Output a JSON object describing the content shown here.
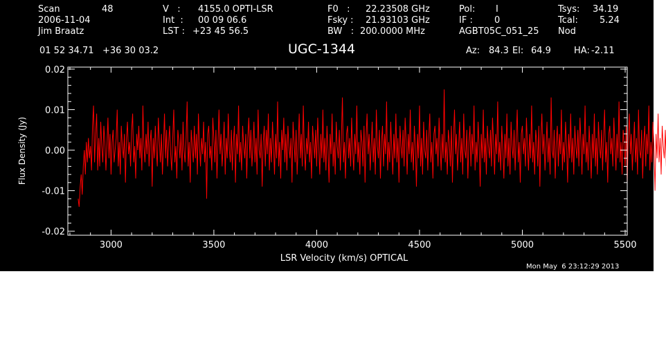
{
  "header": {
    "scan_label": "Scan",
    "scan_value": "48",
    "date": "2006-11-04",
    "observer": "Jim Braatz",
    "v_label": "V   :",
    "v_value": "4155.0 OPTI-LSR",
    "int_label": "Int  :",
    "int_value": "00 09 06.6",
    "lst_label": "LST :",
    "lst_value": "+23 45 56.5",
    "f0_label": "F0   :",
    "f0_value": "22.23508 GHz",
    "fsky_label": "Fsky :",
    "fsky_value": "21.93103 GHz",
    "bw_label": "BW   :",
    "bw_value": "200.0000 MHz",
    "pol_label": "Pol:",
    "pol_value": "I",
    "if_label": "IF :",
    "if_value": "0",
    "project": "AGBT05C_051_25",
    "tsys_label": "Tsys:",
    "tsys_value": "34.19",
    "tcal_label": "Tcal:",
    "tcal_value": "5.24",
    "mode": "Nod",
    "coords": "01 52 34.71   +36 30 03.2",
    "source": "UGC-1344",
    "az_label": "Az:",
    "az_value": "84.3",
    "el_label": "El:",
    "el_value": "64.9",
    "ha_label": "HA:",
    "ha_value": "-2.11"
  },
  "footer": {
    "timestamp": "Mon May  6 23:12:29 2013"
  },
  "colors": {
    "background": "#000000",
    "axes": "#ffffff",
    "trace": "#ff0000"
  },
  "chart_data": {
    "type": "line",
    "title": "UGC-1344",
    "xlabel": "LSR Velocity (km/s) OPTICAL",
    "ylabel": "Flux Density (Jy)",
    "xlim": [
      2790,
      5510
    ],
    "ylim": [
      -0.021,
      0.0205
    ],
    "x_ticks": [
      3000,
      3500,
      4000,
      4500,
      5000,
      5500
    ],
    "x_tick_labels": [
      "3000",
      "3500",
      "4000",
      "4500",
      "5000",
      "5500"
    ],
    "y_ticks": [
      -0.02,
      -0.01,
      0.0,
      0.01,
      0.02
    ],
    "y_tick_labels": [
      "-0.02",
      "-0.01",
      "0.00",
      "0.01",
      "0.02"
    ],
    "grid": false,
    "series": [
      {
        "color": "#ff0000",
        "x_start": 2840,
        "x_step": 5,
        "values": [
          -0.012,
          -0.014,
          -0.009,
          -0.006,
          -0.011,
          -0.004,
          0.0,
          -0.006,
          0.002,
          -0.003,
          0.003,
          -0.002,
          0.001,
          -0.005,
          0.006,
          0.011,
          -0.003,
          0.004,
          0.009,
          -0.005,
          0.003,
          -0.004,
          0.007,
          0.001,
          -0.003,
          0.006,
          0.002,
          -0.005,
          0.001,
          0.008,
          -0.002,
          0.004,
          -0.006,
          0.002,
          0.005,
          -0.003,
          0.0,
          0.003,
          0.01,
          -0.004,
          0.002,
          -0.006,
          0.006,
          0.001,
          -0.002,
          0.004,
          -0.008,
          0.003,
          0.007,
          -0.001,
          0.002,
          -0.004,
          0.005,
          0.009,
          -0.003,
          0.001,
          -0.007,
          0.004,
          0.0,
          0.006,
          -0.002,
          0.003,
          -0.005,
          0.011,
          0.001,
          -0.003,
          0.004,
          -0.001,
          0.007,
          -0.004,
          0.002,
          0.005,
          -0.009,
          0.003,
          -0.002,
          0.006,
          0.0,
          -0.004,
          0.008,
          0.002,
          -0.003,
          0.004,
          -0.006,
          0.001,
          0.009,
          -0.002,
          0.005,
          -0.004,
          0.002,
          0.006,
          -0.001,
          -0.005,
          0.003,
          0.01,
          -0.003,
          0.001,
          -0.007,
          0.005,
          0.002,
          -0.002,
          0.004,
          -0.005,
          0.007,
          0.0,
          -0.003,
          0.003,
          0.012,
          -0.004,
          0.002,
          -0.008,
          0.005,
          0.001,
          -0.003,
          0.006,
          -0.002,
          0.004,
          -0.006,
          0.009,
          0.001,
          -0.004,
          0.003,
          -0.001,
          0.007,
          -0.003,
          0.002,
          -0.012,
          0.004,
          0.006,
          -0.002,
          0.001,
          -0.005,
          0.008,
          0.003,
          -0.003,
          0.005,
          -0.007,
          0.002,
          0.01,
          -0.001,
          0.004,
          -0.004,
          0.001,
          0.007,
          -0.006,
          0.003,
          -0.002,
          0.009,
          0.0,
          -0.003,
          0.005,
          -0.005,
          0.002,
          0.006,
          -0.008,
          0.004,
          -0.001,
          0.011,
          -0.003,
          0.002,
          -0.005,
          0.006,
          0.001,
          -0.002,
          0.004,
          -0.007,
          0.003,
          0.008,
          -0.002,
          0.005,
          -0.004,
          0.001,
          0.007,
          -0.003,
          0.003,
          -0.006,
          0.01,
          0.0,
          -0.002,
          0.004,
          -0.009,
          0.002,
          0.006,
          -0.004,
          0.005,
          -0.001,
          0.009,
          -0.005,
          0.003,
          -0.003,
          0.007,
          0.001,
          -0.006,
          0.004,
          -0.002,
          0.012,
          -0.004,
          0.002,
          -0.007,
          0.005,
          0.0,
          0.008,
          -0.003,
          0.004,
          -0.005,
          0.006,
          0.001,
          -0.002,
          0.003,
          -0.008,
          0.007,
          0.002,
          -0.003,
          0.005,
          -0.006,
          0.001,
          0.009,
          -0.002,
          0.004,
          -0.004,
          0.011,
          0.0,
          -0.005,
          0.003,
          -0.001,
          0.007,
          -0.003,
          0.002,
          -0.007,
          0.006,
          0.002,
          -0.002,
          0.005,
          -0.004,
          0.008,
          0.001,
          -0.006,
          0.004,
          -0.002,
          0.01,
          -0.003,
          0.003,
          -0.005,
          0.006,
          0.0,
          -0.008,
          0.004,
          -0.001,
          0.009,
          -0.004,
          0.002,
          -0.006,
          0.007,
          0.001,
          -0.002,
          0.005,
          -0.005,
          0.003,
          0.013,
          -0.003,
          0.002,
          -0.007,
          0.004,
          0.006,
          -0.002,
          0.003,
          -0.004,
          0.008,
          0.0,
          -0.005,
          0.004,
          -0.001,
          0.011,
          -0.003,
          0.002,
          -0.006,
          0.005,
          0.002,
          -0.004,
          0.006,
          -0.008,
          0.003,
          0.009,
          -0.001,
          0.004,
          -0.005,
          0.001,
          0.007,
          -0.003,
          0.003,
          -0.006,
          0.01,
          0.001,
          -0.002,
          0.005,
          -0.007,
          0.002,
          0.006,
          -0.004,
          0.004,
          -0.001,
          0.012,
          -0.005,
          0.002,
          -0.003,
          0.007,
          0.0,
          -0.006,
          0.004,
          -0.002,
          0.009,
          -0.003,
          0.003,
          -0.008,
          0.006,
          0.001,
          -0.002,
          0.005,
          -0.004,
          0.008,
          0.002,
          -0.006,
          0.004,
          -0.001,
          0.01,
          -0.003,
          0.002,
          -0.005,
          0.006,
          0.001,
          -0.009,
          0.004,
          -0.002,
          0.011,
          -0.004,
          0.003,
          -0.006,
          0.007,
          0.0,
          -0.002,
          0.005,
          -0.005,
          0.003,
          0.009,
          -0.003,
          0.002,
          -0.007,
          0.004,
          0.006,
          -0.001,
          0.003,
          -0.004,
          0.008,
          0.001,
          -0.005,
          0.004,
          -0.002,
          0.015,
          -0.003,
          0.002,
          -0.006,
          0.005,
          0.002,
          -0.004,
          0.006,
          -0.008,
          0.003,
          0.01,
          -0.001,
          0.004,
          -0.005,
          0.001,
          0.007,
          -0.003,
          0.003,
          -0.006,
          0.009,
          0.0,
          -0.002,
          0.005,
          -0.007,
          0.002,
          0.006,
          -0.004,
          0.004,
          -0.001,
          0.011,
          -0.005,
          0.002,
          -0.003,
          0.007,
          0.001,
          -0.009,
          0.004,
          -0.002,
          0.01,
          -0.003,
          0.003,
          -0.006,
          0.006,
          0.001,
          -0.002,
          0.005,
          -0.004,
          0.008,
          0.002,
          -0.006,
          0.004,
          -0.001,
          0.012,
          -0.003,
          0.002,
          -0.005,
          0.006,
          0.0,
          -0.007,
          0.004,
          -0.002,
          0.009,
          -0.004,
          0.003,
          -0.006,
          0.007,
          0.001,
          -0.002,
          0.005,
          -0.005,
          0.003,
          0.01,
          -0.003,
          0.002,
          -0.008,
          0.004,
          0.006,
          -0.001,
          0.003,
          -0.004,
          0.008,
          0.001,
          -0.005,
          0.004,
          -0.002,
          0.011,
          -0.003,
          0.002,
          -0.006,
          0.005,
          0.002,
          -0.004,
          0.006,
          -0.009,
          0.003,
          0.009,
          -0.001,
          0.004,
          -0.005,
          0.001,
          0.007,
          -0.003,
          0.003,
          -0.006,
          0.013,
          0.0,
          -0.002,
          0.005,
          -0.007,
          0.002,
          0.006,
          -0.004,
          0.004,
          -0.001,
          0.01,
          -0.005,
          0.002,
          -0.003,
          0.007,
          0.001,
          -0.008,
          0.004,
          -0.002,
          0.009,
          -0.003,
          0.003,
          -0.006,
          0.006,
          0.001,
          -0.002,
          0.005,
          -0.004,
          0.008,
          0.002,
          -0.006,
          0.004,
          -0.001,
          0.011,
          -0.003,
          0.002,
          -0.005,
          0.006,
          0.0,
          -0.007,
          0.004,
          -0.002,
          0.009,
          -0.004,
          0.003,
          -0.006,
          0.007,
          0.001,
          -0.002,
          0.005,
          -0.005,
          0.003,
          0.01,
          -0.003,
          0.002,
          -0.008,
          0.004,
          0.006,
          -0.001,
          0.003,
          -0.004,
          0.008,
          0.001,
          -0.005,
          0.004,
          -0.002,
          0.012,
          -0.003,
          0.002,
          -0.006,
          0.005,
          0.002,
          -0.004,
          0.006,
          -0.008,
          0.003,
          0.009,
          -0.001,
          0.004,
          -0.005,
          0.001,
          0.007,
          -0.003,
          0.003,
          -0.006,
          0.01,
          0.0,
          -0.002,
          0.005,
          -0.007,
          0.002,
          0.006,
          -0.004,
          0.004,
          -0.001,
          0.011,
          -0.005,
          0.002,
          -0.003,
          0.007,
          0.001,
          -0.01,
          0.004,
          -0.002,
          0.009,
          -0.003,
          0.003,
          -0.006,
          0.006,
          0.001,
          -0.002,
          0.005,
          -0.004,
          0.008,
          0.002,
          -0.006,
          0.004,
          -0.001,
          0.011,
          -0.003,
          0.002,
          -0.005,
          0.006,
          0.0,
          -0.007,
          0.004,
          -0.002,
          0.01,
          -0.004,
          0.003,
          -0.006,
          0.007,
          0.001,
          -0.002,
          0.005,
          -0.005,
          0.003,
          0.009,
          -0.003,
          0.002,
          -0.008,
          0.004,
          0.006,
          -0.001,
          0.003,
          -0.004,
          0.008,
          0.001,
          -0.005,
          0.004,
          -0.002,
          0.012,
          -0.003,
          0.002,
          -0.006,
          0.005,
          0.002,
          -0.004,
          0.006,
          -0.009,
          0.003,
          0.01,
          -0.001,
          0.004,
          -0.005,
          0.001,
          0.007,
          -0.003,
          0.003,
          -0.006,
          0.011,
          0.0,
          -0.002,
          0.005,
          -0.007,
          0.002,
          0.006,
          -0.004,
          0.004,
          -0.001,
          0.013,
          -0.005,
          0.002,
          -0.003,
          0.007,
          0.001,
          -0.008,
          0.004,
          -0.002,
          0.01,
          -0.003,
          0.003,
          -0.006,
          0.006,
          0.001,
          -0.016,
          0.005,
          -0.004,
          0.011,
          0.002,
          -0.006,
          0.004,
          -0.001,
          0.012,
          -0.003,
          0.002,
          -0.005,
          0.006,
          0.0,
          -0.011,
          0.004,
          0.001,
          0.007,
          -0.002,
          0.003,
          -0.004,
          0.008,
          0.002,
          -0.008,
          0.005,
          0.01,
          0.003,
          0.004,
          0.014,
          0.008,
          0.019
        ]
      }
    ]
  }
}
